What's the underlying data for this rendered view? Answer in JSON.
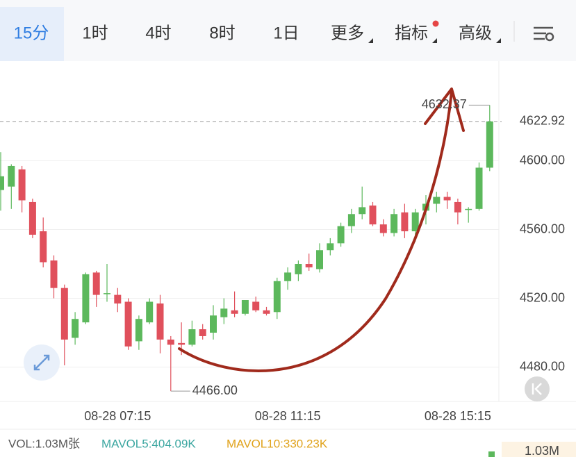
{
  "tabs": [
    "15分",
    "1时",
    "4时",
    "8时",
    "1日",
    "更多",
    "指标",
    "高级"
  ],
  "chart_data": {
    "type": "candlestick",
    "categories": [
      null,
      null,
      null,
      null,
      null,
      null,
      null,
      null,
      null,
      null,
      null,
      "08-28 07:15",
      null,
      null,
      null,
      null,
      null,
      null,
      null,
      null,
      null,
      null,
      null,
      null,
      null,
      null,
      null,
      "08-28 11:15",
      null,
      null,
      null,
      null,
      null,
      null,
      null,
      null,
      null,
      null,
      null,
      null,
      null,
      null,
      null,
      "08-28 15:15",
      null,
      null,
      null
    ],
    "open": [
      4583,
      4585,
      4595,
      4576,
      4559,
      4542,
      4526,
      4497,
      4506,
      4535,
      4523,
      4522,
      4518,
      4495,
      4506,
      4517,
      4496,
      4494,
      4493,
      4502,
      4500,
      4509,
      4513,
      4511,
      4518,
      4513,
      4512,
      4530,
      4534,
      4540,
      4537,
      4548,
      4552,
      4562,
      4569,
      4574,
      4563,
      4558,
      4570,
      4559,
      4571,
      4575,
      4579,
      4576,
      4572,
      4572,
      4596
    ],
    "high": [
      4605,
      4598,
      4597,
      4578,
      4567,
      4545,
      4528,
      4512,
      4535,
      4536,
      4540,
      4526,
      4520,
      4510,
      4520,
      4522,
      4498,
      4506,
      4507,
      4505,
      4516,
      4520,
      4524,
      4519,
      4521,
      4515,
      4532,
      4538,
      4542,
      4546,
      4552,
      4555,
      4564,
      4572,
      4585,
      4576,
      4566,
      4572,
      4575,
      4572,
      4580,
      4582,
      4582,
      4578,
      4573,
      4599,
      4632.37
    ],
    "low": [
      4571,
      4572,
      4570,
      4555,
      4538,
      4520,
      4481,
      4493,
      4505,
      4515,
      4518,
      4512,
      4490,
      4490,
      4505,
      4488,
      4466,
      4487,
      4492,
      4496,
      4496,
      4505,
      4509,
      4510,
      4512,
      4510,
      4508,
      4525,
      4530,
      4536,
      4535,
      4545,
      4550,
      4558,
      4566,
      4562,
      4556,
      4556,
      4555,
      4553,
      4563,
      4570,
      4572,
      4563,
      4564,
      4571,
      4594
    ],
    "close": [
      4591,
      4597,
      4577,
      4557,
      4541,
      4526,
      4496,
      4508,
      4534,
      4522,
      4523,
      4517,
      4492,
      4508,
      4518,
      4496,
      4493,
      4493,
      4502,
      4498,
      4510,
      4514,
      4511,
      4519,
      4513,
      4511,
      4530,
      4535,
      4540,
      4538,
      4548,
      4552,
      4562,
      4569,
      4573,
      4563,
      4558,
      4569,
      4559,
      4570,
      4575,
      4579,
      4577,
      4570,
      4572,
      4596,
      4622.92
    ],
    "up_color": "#5cb85c",
    "down_color": "#e0505c",
    "ylim": [
      4460,
      4658
    ],
    "yticks": [
      {
        "value": 4480,
        "label": "4480.00"
      },
      {
        "value": 4520,
        "label": "4520.00"
      },
      {
        "value": 4560,
        "label": "4560.00"
      },
      {
        "value": 4600,
        "label": "4600.00"
      }
    ],
    "grid": true,
    "last_price": {
      "value": 4622.92,
      "label": "4622.92"
    },
    "annotations": [
      {
        "value": 4632.37,
        "label": "4632.37"
      },
      {
        "value": 4466,
        "label": "4466.00"
      }
    ]
  },
  "volume": {
    "text": "VOL:1.03M张",
    "mavol5": "MAVOL5:404.09K",
    "mavol10": "MAVOL10:330.23K",
    "axis_label": "1.03M"
  }
}
